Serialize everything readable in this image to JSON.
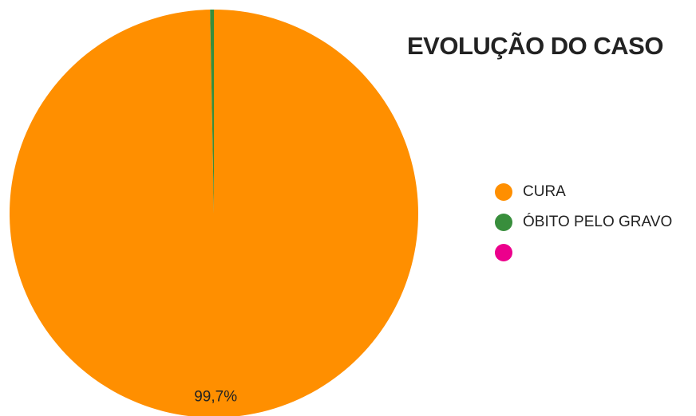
{
  "chart_data": {
    "type": "pie",
    "title": "EVOLUÇÃO DO CASO",
    "categories": [
      "CURA",
      "ÓBITO PELO GRAVO",
      ""
    ],
    "values": [
      99.7,
      0.3,
      0
    ],
    "colors": [
      "#ff8f00",
      "#388e3c",
      "#ec008c"
    ],
    "data_labels": [
      "99,7%",
      "",
      ""
    ],
    "legend_position": "right"
  }
}
